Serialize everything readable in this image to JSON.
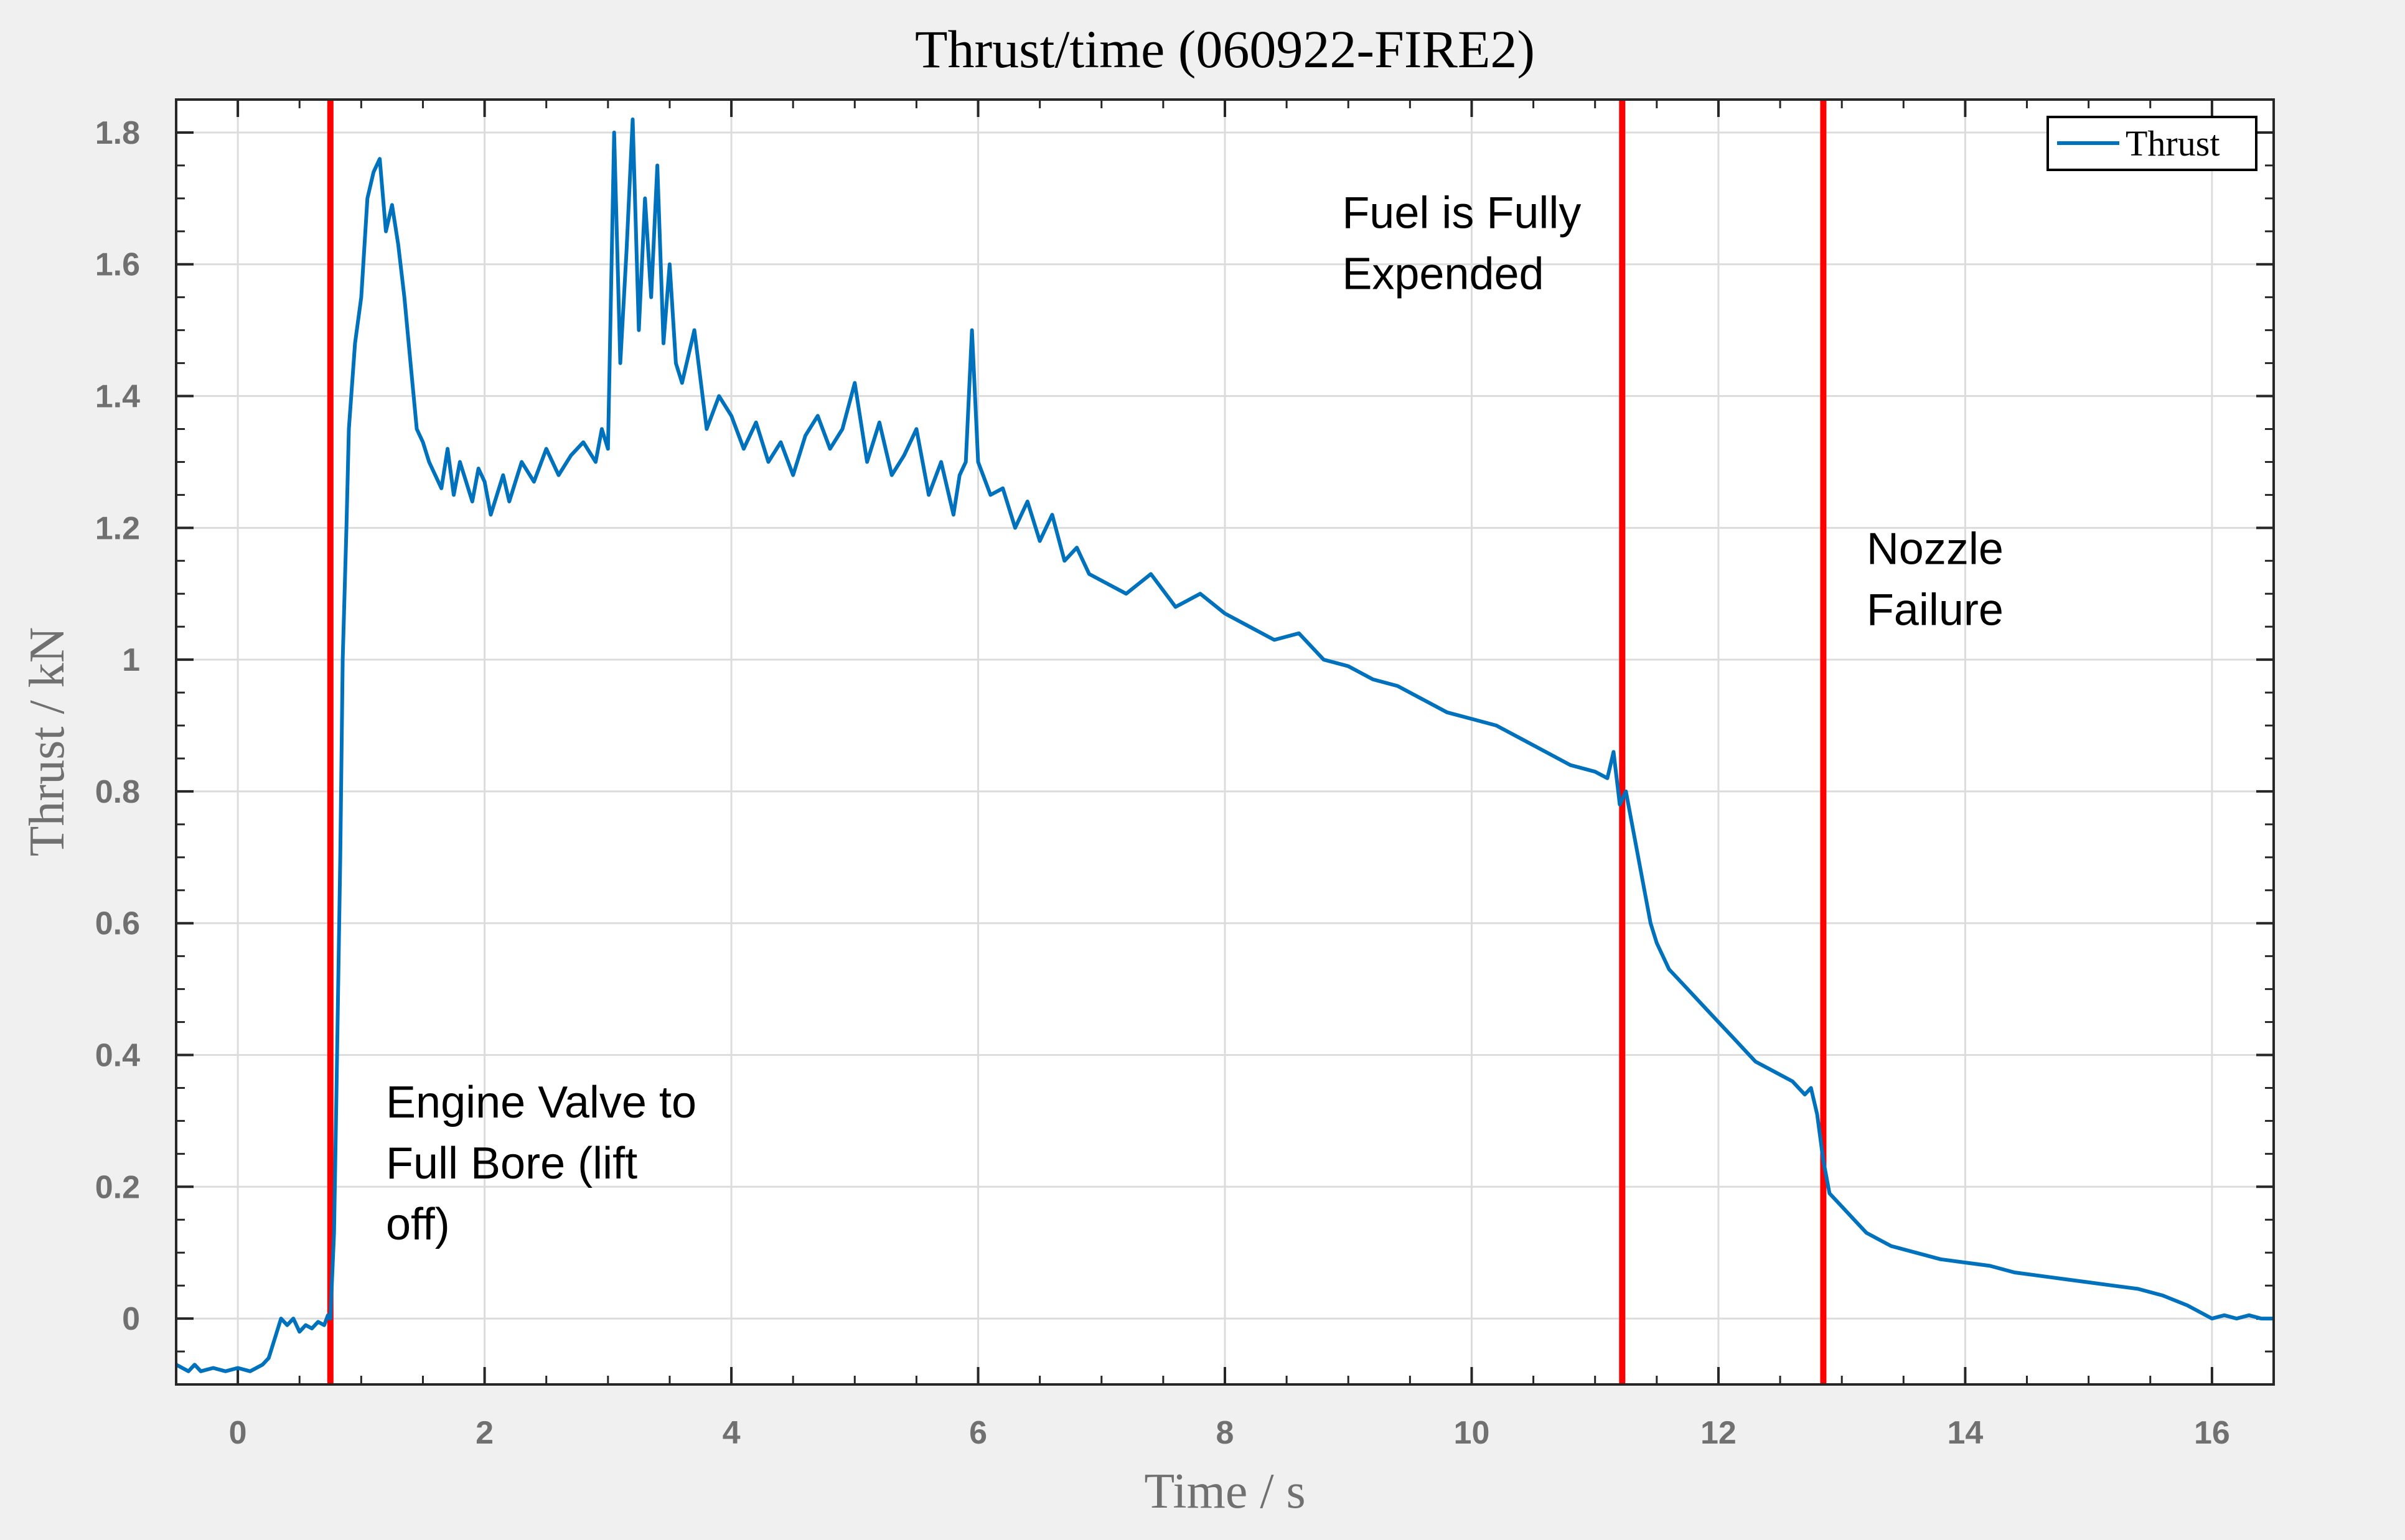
{
  "chart_data": {
    "type": "line",
    "title": "Thrust/time (060922-FIRE2)",
    "xlabel": "Time / s",
    "ylabel": "Thrust / kN",
    "xlim": [
      -0.5,
      16.5
    ],
    "ylim": [
      -0.1,
      1.85
    ],
    "xticks": [
      0,
      2,
      4,
      6,
      8,
      10,
      12,
      14,
      16
    ],
    "xtick_labels": [
      "0",
      "2",
      "4",
      "6",
      "8",
      "10",
      "12",
      "14",
      "16"
    ],
    "yticks": [
      0,
      0.2,
      0.4,
      0.6,
      0.8,
      1,
      1.2,
      1.4,
      1.6,
      1.8
    ],
    "ytick_labels": [
      "0",
      "0.2",
      "0.4",
      "0.6",
      "0.8",
      "1",
      "1.2",
      "1.4",
      "1.6",
      "1.8"
    ],
    "grid": true,
    "legend_position": "top-right",
    "series": [
      {
        "name": "Thrust",
        "color": "#0072bd",
        "x": [
          -0.5,
          -0.4,
          -0.35,
          -0.3,
          -0.2,
          -0.1,
          0,
          0.1,
          0.2,
          0.25,
          0.3,
          0.35,
          0.4,
          0.45,
          0.5,
          0.55,
          0.6,
          0.65,
          0.7,
          0.73,
          0.75,
          0.78,
          0.8,
          0.83,
          0.85,
          0.88,
          0.9,
          0.95,
          1.0,
          1.05,
          1.1,
          1.15,
          1.2,
          1.25,
          1.3,
          1.35,
          1.4,
          1.45,
          1.5,
          1.55,
          1.6,
          1.65,
          1.7,
          1.75,
          1.8,
          1.85,
          1.9,
          1.95,
          2.0,
          2.05,
          2.1,
          2.15,
          2.2,
          2.3,
          2.4,
          2.5,
          2.6,
          2.7,
          2.8,
          2.9,
          2.95,
          3.0,
          3.05,
          3.1,
          3.15,
          3.2,
          3.25,
          3.3,
          3.35,
          3.4,
          3.45,
          3.5,
          3.55,
          3.6,
          3.7,
          3.8,
          3.9,
          4.0,
          4.1,
          4.2,
          4.3,
          4.4,
          4.5,
          4.6,
          4.7,
          4.8,
          4.9,
          5.0,
          5.1,
          5.2,
          5.3,
          5.4,
          5.5,
          5.6,
          5.7,
          5.8,
          5.85,
          5.9,
          5.95,
          6.0,
          6.1,
          6.2,
          6.3,
          6.4,
          6.5,
          6.6,
          6.7,
          6.8,
          6.9,
          7.0,
          7.2,
          7.4,
          7.6,
          7.8,
          8.0,
          8.2,
          8.4,
          8.6,
          8.8,
          9.0,
          9.2,
          9.4,
          9.6,
          9.8,
          10.0,
          10.2,
          10.4,
          10.6,
          10.8,
          11.0,
          11.1,
          11.15,
          11.2,
          11.25,
          11.3,
          11.35,
          11.4,
          11.45,
          11.5,
          11.6,
          11.7,
          11.8,
          11.9,
          12.0,
          12.1,
          12.2,
          12.3,
          12.4,
          12.5,
          12.6,
          12.7,
          12.75,
          12.8,
          12.85,
          12.9,
          13.0,
          13.1,
          13.2,
          13.3,
          13.4,
          13.6,
          13.8,
          14.0,
          14.2,
          14.4,
          14.6,
          14.8,
          15.0,
          15.2,
          15.4,
          15.6,
          15.8,
          15.9,
          16.0,
          16.1,
          16.2,
          16.3,
          16.4,
          16.5
        ],
        "y": [
          -0.07,
          -0.08,
          -0.07,
          -0.08,
          -0.075,
          -0.08,
          -0.075,
          -0.08,
          -0.07,
          -0.06,
          -0.03,
          0.0,
          -0.01,
          0.0,
          -0.02,
          -0.01,
          -0.015,
          -0.005,
          -0.01,
          0.005,
          0.0,
          0.13,
          0.35,
          0.7,
          1.0,
          1.2,
          1.35,
          1.48,
          1.55,
          1.7,
          1.74,
          1.76,
          1.65,
          1.69,
          1.63,
          1.55,
          1.45,
          1.35,
          1.33,
          1.3,
          1.28,
          1.26,
          1.32,
          1.25,
          1.3,
          1.27,
          1.24,
          1.29,
          1.27,
          1.22,
          1.25,
          1.28,
          1.24,
          1.3,
          1.27,
          1.32,
          1.28,
          1.31,
          1.33,
          1.3,
          1.35,
          1.32,
          1.8,
          1.45,
          1.62,
          1.82,
          1.5,
          1.7,
          1.55,
          1.75,
          1.48,
          1.6,
          1.45,
          1.42,
          1.5,
          1.35,
          1.4,
          1.37,
          1.32,
          1.36,
          1.3,
          1.33,
          1.28,
          1.34,
          1.37,
          1.32,
          1.35,
          1.42,
          1.3,
          1.36,
          1.28,
          1.31,
          1.35,
          1.25,
          1.3,
          1.22,
          1.28,
          1.3,
          1.5,
          1.3,
          1.25,
          1.26,
          1.2,
          1.24,
          1.18,
          1.22,
          1.15,
          1.17,
          1.13,
          1.12,
          1.1,
          1.13,
          1.08,
          1.1,
          1.07,
          1.05,
          1.03,
          1.04,
          1.0,
          0.99,
          0.97,
          0.96,
          0.94,
          0.92,
          0.91,
          0.9,
          0.88,
          0.86,
          0.84,
          0.83,
          0.82,
          0.86,
          0.78,
          0.8,
          0.75,
          0.7,
          0.65,
          0.6,
          0.57,
          0.53,
          0.51,
          0.49,
          0.47,
          0.45,
          0.43,
          0.41,
          0.39,
          0.38,
          0.37,
          0.36,
          0.34,
          0.35,
          0.31,
          0.24,
          0.19,
          0.17,
          0.15,
          0.13,
          0.12,
          0.11,
          0.1,
          0.09,
          0.085,
          0.08,
          0.07,
          0.065,
          0.06,
          0.055,
          0.05,
          0.045,
          0.035,
          0.02,
          0.01,
          0.0,
          0.005,
          0.0,
          0.005,
          0.0,
          0.0
        ]
      }
    ],
    "vlines": [
      {
        "x": 0.75,
        "color": "#ff0000"
      },
      {
        "x": 11.22,
        "color": "#ff0000"
      },
      {
        "x": 12.85,
        "color": "#ff0000"
      }
    ],
    "annotations": [
      {
        "lines": [
          "Engine Valve to",
          "Full Bore (lift",
          "off)"
        ],
        "x": 1.2,
        "y": 0.305
      },
      {
        "lines": [
          "Fuel is Fully",
          "Expended"
        ],
        "x": 8.95,
        "y": 1.655
      },
      {
        "lines": [
          "Nozzle",
          "Failure"
        ],
        "x": 13.2,
        "y": 1.145
      }
    ]
  }
}
